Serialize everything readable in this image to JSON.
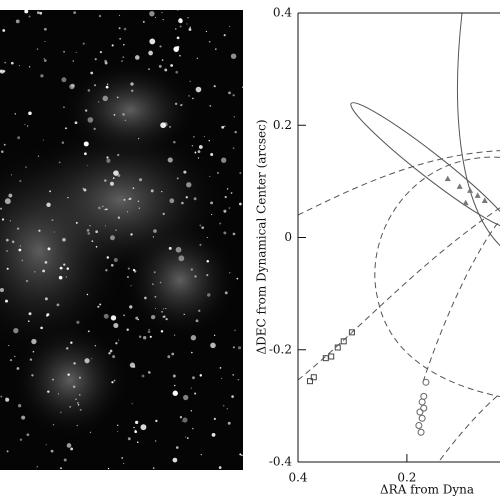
{
  "chart_data": {
    "type": "scatter",
    "ylabel": "ΔDEC from Dynamical Center (arcsec)",
    "xlabel": "ΔRA from Dyna",
    "xlim": [
      0.4,
      0.029
    ],
    "ylim": [
      -0.4,
      0.4
    ],
    "xticks": [
      0.4,
      0.2
    ],
    "yticks": [
      0.4,
      0.2,
      0,
      -0.2,
      -0.4
    ],
    "series": [
      {
        "marker": "square",
        "color": "#444444",
        "x": [
          0.378,
          0.371,
          0.349,
          0.339,
          0.327,
          0.316,
          0.301
        ],
        "y": [
          -0.256,
          -0.249,
          -0.215,
          -0.212,
          -0.196,
          -0.185,
          -0.169
        ]
      },
      {
        "marker": "circle",
        "color": "#666666",
        "x": [
          0.174,
          0.178,
          0.172,
          0.176,
          0.169,
          0.172,
          0.169,
          0.165
        ],
        "y": [
          -0.347,
          -0.335,
          -0.322,
          -0.311,
          -0.304,
          -0.293,
          -0.283,
          -0.258
        ]
      },
      {
        "marker": "triangle",
        "color": "#777777",
        "x": [
          0.125,
          0.103,
          0.084,
          0.07,
          0.057,
          0.092
        ],
        "y": [
          0.105,
          0.091,
          0.084,
          0.075,
          0.066,
          0.062
        ]
      }
    ]
  }
}
